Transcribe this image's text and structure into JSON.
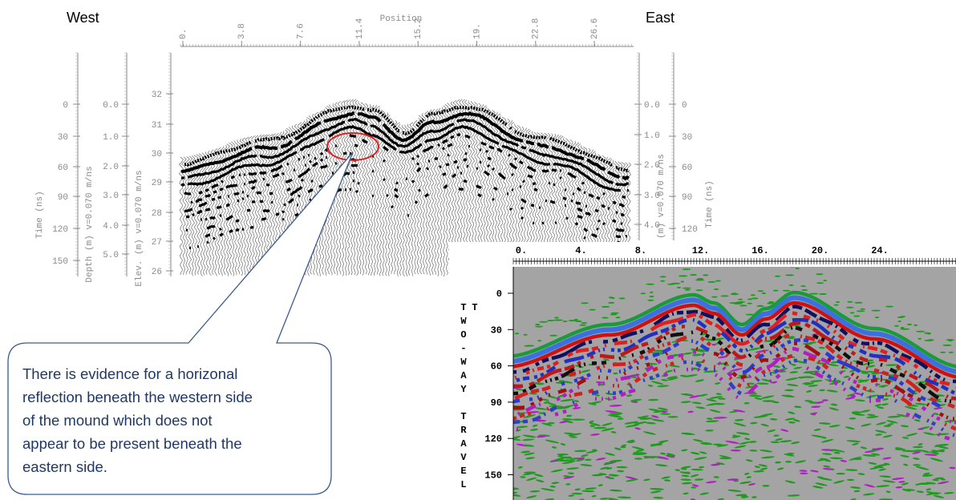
{
  "labels": {
    "west": "West",
    "east": "East"
  },
  "wiggle_plot": {
    "x_axis_title": "Position",
    "x_ticks": [
      "0.",
      "3.8",
      "7.6",
      "11.4",
      "15.2",
      "19.",
      "22.8",
      "26.6"
    ],
    "time_label": "Time (ns)",
    "time_ticks": [
      "0",
      "30",
      "60",
      "90",
      "120",
      "150"
    ],
    "depth_label": "Depth (m) v=0.070 m/ns",
    "depth_ticks": [
      "0.0",
      "1.0",
      "2.0",
      "3.0",
      "4.0",
      "5.0"
    ],
    "elev_label": "Elev. (m) v=0.070 m/ns",
    "elev_ticks": [
      "32",
      "31",
      "30",
      "29",
      "28",
      "27",
      "26"
    ],
    "right_depth_label": "(m) v=0.070 m/ns",
    "right_depth_ticks": [
      "0.0",
      "1.0",
      "2.0",
      "3.0",
      "4.0"
    ],
    "right_time_label": "Time (ns)",
    "right_time_ticks": [
      "0",
      "30",
      "60",
      "90",
      "120"
    ]
  },
  "color_plot": {
    "x_ticks": [
      "0.",
      "4.",
      "8.",
      "12.",
      "16.",
      "20.",
      "24."
    ],
    "y_ticks": [
      "0",
      "30",
      "60",
      "90",
      "120",
      "150"
    ],
    "y_label": "TWO-WAY TRAVEL T"
  },
  "callout": {
    "lines": [
      "There is evidence for a horizonal",
      "reflection beneath the western side",
      "of the mound which does not",
      "appear to be present beneath the",
      "eastern side."
    ]
  }
}
